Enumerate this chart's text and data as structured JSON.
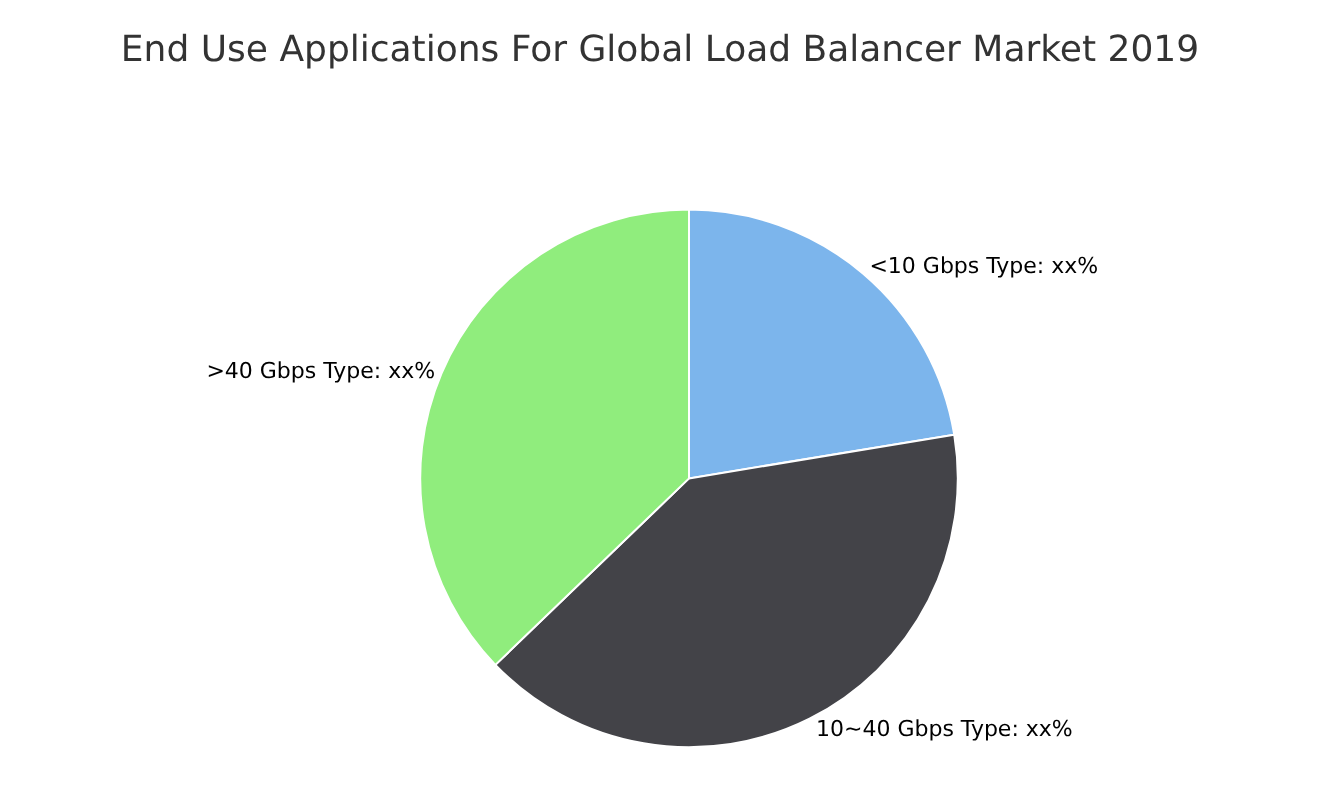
{
  "chart_data": {
    "type": "pie",
    "title": "End Use Applications For Global Load Balancer Market 2019",
    "categories": [
      "<10 Gbps Type",
      "10~40 Gbps Type",
      ">40 Gbps Type"
    ],
    "values": [
      22.4,
      40.4,
      37.2
    ],
    "colors": [
      "#7cb5ec",
      "#434348",
      "#90ed7d"
    ],
    "value_labels": [
      "xx%",
      "xx%",
      "xx%"
    ]
  }
}
